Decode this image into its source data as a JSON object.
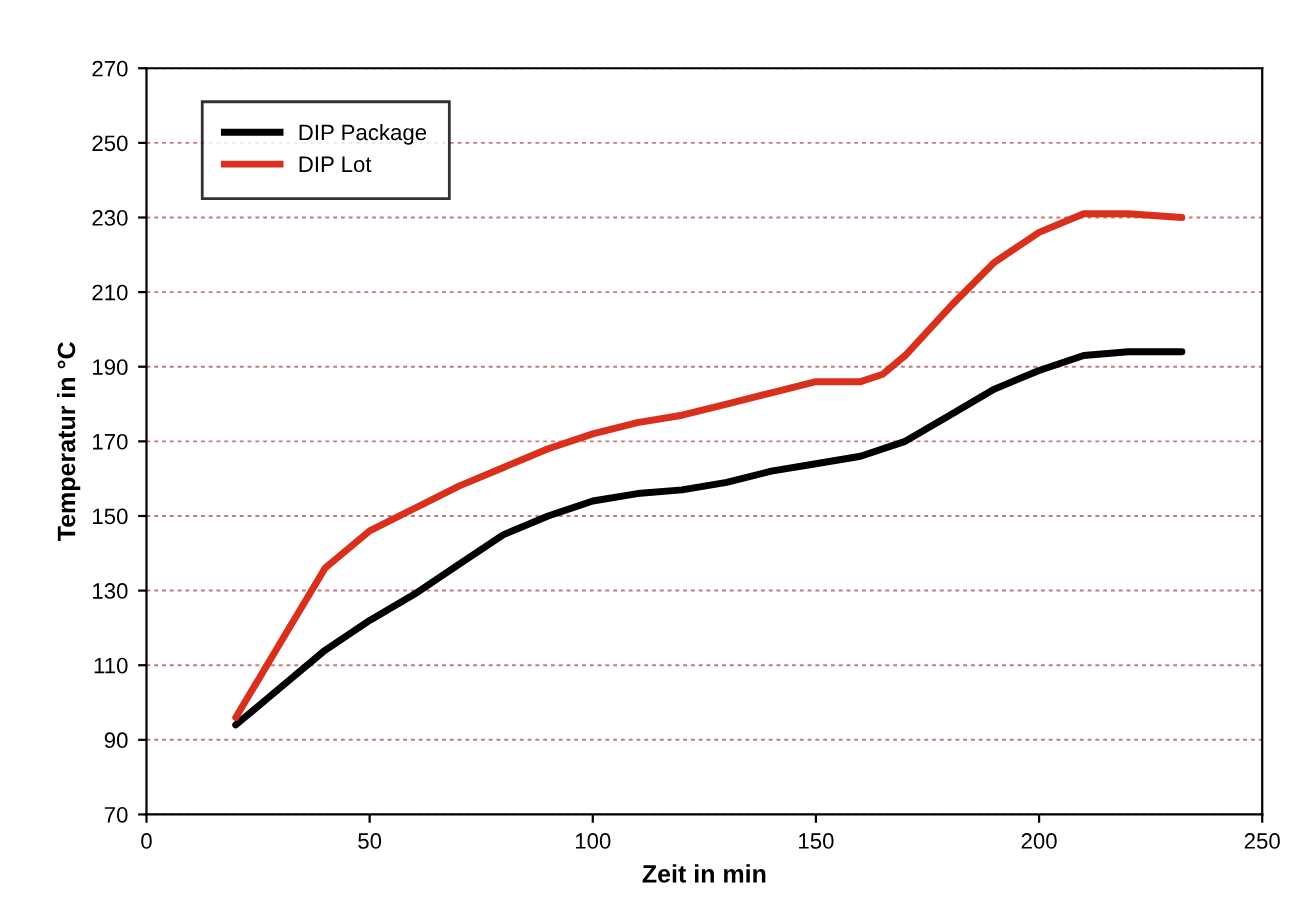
{
  "chart_data": {
    "type": "line",
    "xlabel": "Zeit in min",
    "ylabel": "Temperatur in °C",
    "xlim": [
      0,
      250
    ],
    "xticks": [
      0,
      50,
      100,
      150,
      200,
      250
    ],
    "ylim": [
      70,
      270
    ],
    "yticks": [
      70,
      90,
      110,
      130,
      150,
      170,
      190,
      210,
      230,
      250,
      270
    ],
    "grid": "y",
    "legend": "top left",
    "marker": "none",
    "line_style": "solid",
    "series": [
      {
        "name": "DIP Package",
        "color": "#000000",
        "x": [
          20,
          30,
          40,
          50,
          60,
          70,
          80,
          90,
          100,
          110,
          120,
          130,
          140,
          150,
          160,
          170,
          180,
          190,
          200,
          210,
          220,
          232
        ],
        "values": [
          94,
          104,
          114,
          122,
          129,
          137,
          145,
          150,
          154,
          156,
          157,
          159,
          162,
          164,
          166,
          170,
          177,
          184,
          189,
          193,
          194,
          194
        ]
      },
      {
        "name": "DIP Lot",
        "color": "#d8301c",
        "x": [
          20,
          30,
          40,
          50,
          60,
          70,
          80,
          90,
          100,
          110,
          120,
          130,
          140,
          150,
          160,
          165,
          170,
          180,
          190,
          200,
          210,
          220,
          232
        ],
        "values": [
          96,
          116,
          136,
          146,
          152,
          158,
          163,
          168,
          172,
          175,
          177,
          180,
          183,
          186,
          186,
          188,
          193,
          206,
          218,
          226,
          231,
          231,
          230
        ]
      }
    ]
  }
}
